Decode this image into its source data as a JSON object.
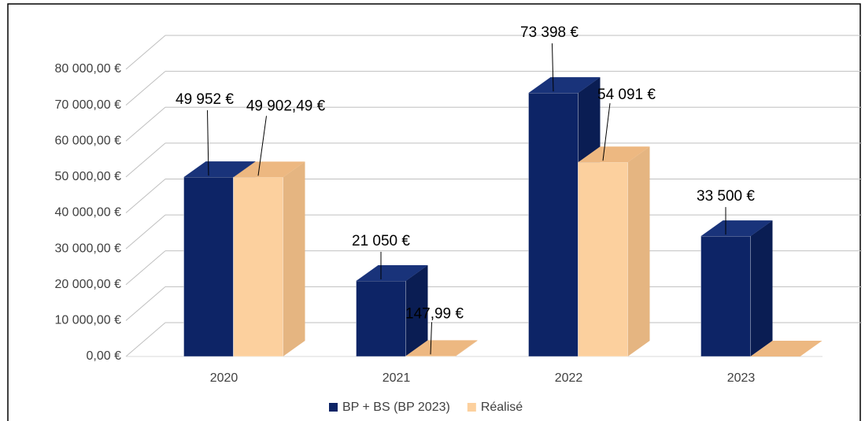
{
  "chart_data": {
    "type": "bar3d",
    "categories": [
      "2020",
      "2021",
      "2022",
      "2023"
    ],
    "series": [
      {
        "name": "BP + BS (BP 2023)",
        "color": "#0d2466",
        "values": [
          49952,
          21050,
          73398,
          33500
        ],
        "value_labels": [
          "49 952 €",
          "21 050 €",
          "73 398 €",
          "33 500 €"
        ]
      },
      {
        "name": "Réalisé",
        "color": "#fcd09e",
        "values": [
          49902.49,
          147.99,
          54091,
          0
        ],
        "value_labels": [
          "49 902,49 €",
          "147,99 €",
          "54 091 €",
          null
        ]
      }
    ],
    "ylim": [
      0,
      80000
    ],
    "yticks": [
      {
        "value": 0,
        "label": "0,00 €"
      },
      {
        "value": 10000,
        "label": "10 000,00 €"
      },
      {
        "value": 20000,
        "label": "20 000,00 €"
      },
      {
        "value": 30000,
        "label": "30 000,00 €"
      },
      {
        "value": 40000,
        "label": "40 000,00 €"
      },
      {
        "value": 50000,
        "label": "50 000,00 €"
      },
      {
        "value": 60000,
        "label": "60 000,00 €"
      },
      {
        "value": 70000,
        "label": "70 000,00 €"
      },
      {
        "value": 80000,
        "label": "80 000,00 €"
      }
    ],
    "grid": true,
    "legend": "bottom"
  }
}
